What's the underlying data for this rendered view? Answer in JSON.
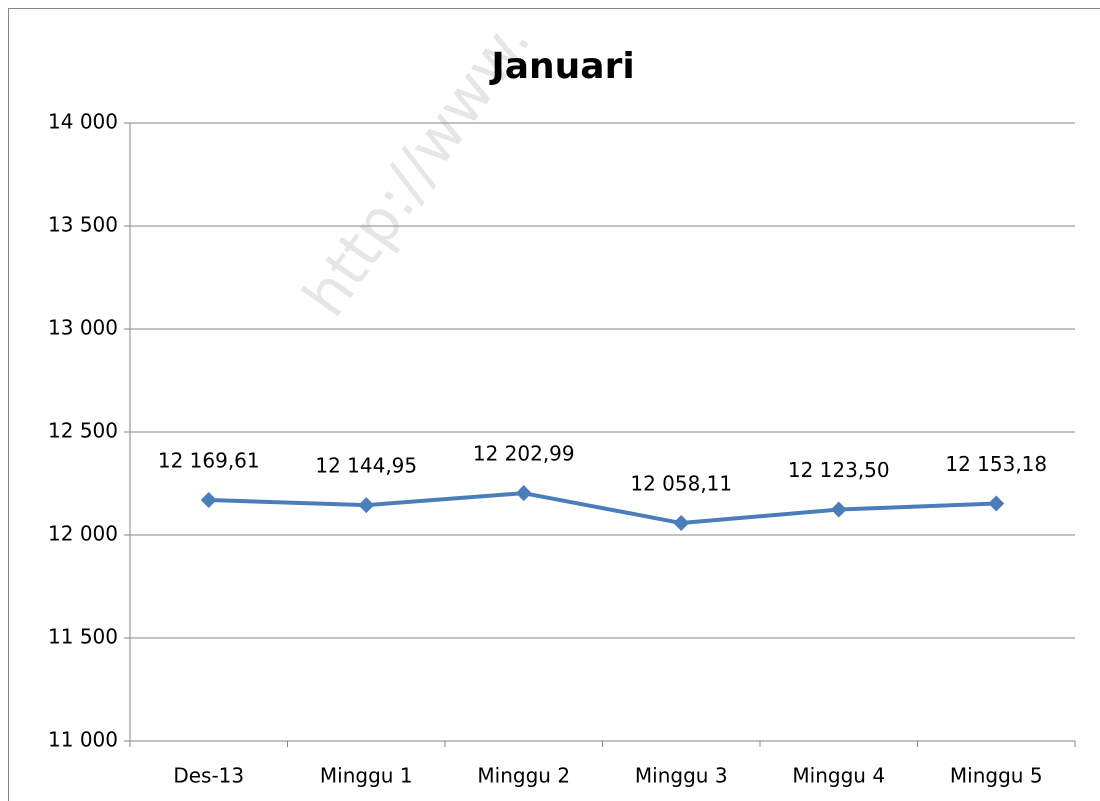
{
  "chart_data": {
    "type": "line",
    "title": "Januari",
    "watermark": "http://www.",
    "categories": [
      "Des-13",
      "Minggu 1",
      "Minggu 2",
      "Minggu 3",
      "Minggu 4",
      "Minggu 5"
    ],
    "series": [
      {
        "name": "Januari",
        "color": "#4a7ebb",
        "values": [
          12169.61,
          12144.95,
          12202.99,
          12058.11,
          12123.5,
          12153.18
        ],
        "value_labels": [
          "12 169,61",
          "12 144,95",
          "12 202,99",
          "12 058,11",
          "12 123,50",
          "12 153,18"
        ]
      }
    ],
    "ylim": [
      11000,
      14000
    ],
    "yticks": [
      {
        "value": 11000,
        "label": "11 000"
      },
      {
        "value": 11500,
        "label": "11 500"
      },
      {
        "value": 12000,
        "label": "12 000"
      },
      {
        "value": 12500,
        "label": "12 500"
      },
      {
        "value": 13000,
        "label": "13 000"
      },
      {
        "value": 13500,
        "label": "13 500"
      },
      {
        "value": 14000,
        "label": "14 000"
      }
    ],
    "grid": true
  }
}
